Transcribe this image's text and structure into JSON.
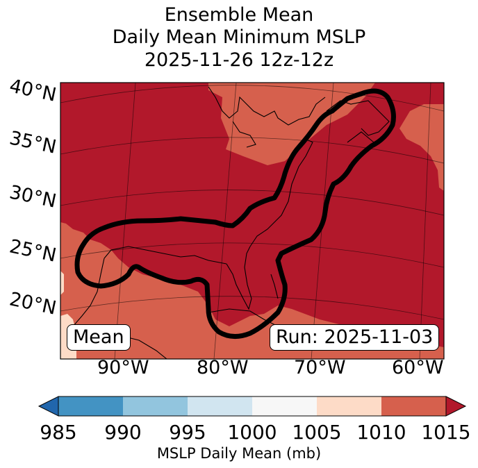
{
  "title": [
    "Ensemble Mean",
    "Daily Mean Minimum MSLP",
    "2025-11-26 12z-12z"
  ],
  "latitude_labels": [
    "40°N",
    "35°N",
    "30°N",
    "25°N",
    "20°N"
  ],
  "longitude_labels": [
    "90°W",
    "80°W",
    "70°W",
    "60°W"
  ],
  "stat_label": "Mean",
  "run_label": "Run: 2025-11-03",
  "colorbar": {
    "ticks": [
      "985",
      "990",
      "995",
      "1000",
      "1005",
      "1010",
      "1015"
    ],
    "label": "MSLP Daily Mean (mb)",
    "colors": [
      "#2166ac",
      "#4393c3",
      "#92c5de",
      "#d1e5f0",
      "#f7f7f7",
      "#fddbc7",
      "#d6604d",
      "#b2182b"
    ],
    "extend": "both"
  },
  "map_colors": {
    "bin_1010_1015": "#d6604d",
    "bin_above_1015": "#b2182b",
    "bin_1005_1010": "#fddbc7",
    "contour": "#000000"
  }
}
